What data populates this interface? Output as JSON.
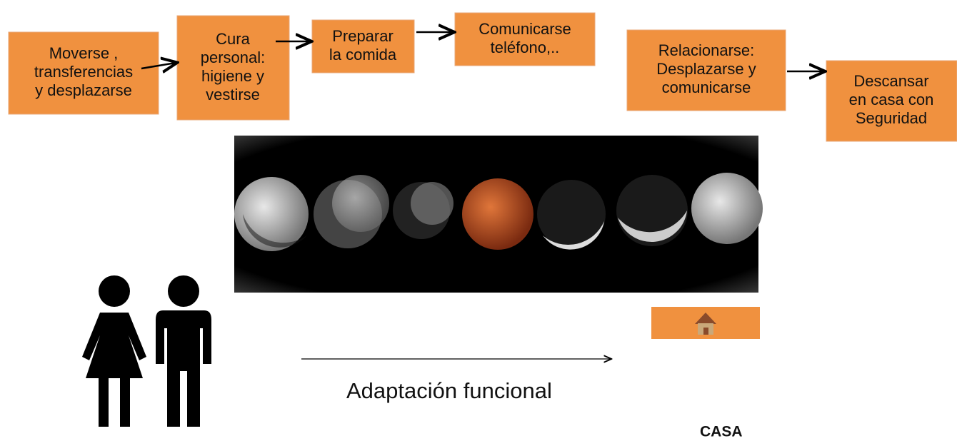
{
  "nodes": [
    {
      "lines": [
        "Moverse ,",
        "transferencias",
        "y desplazarse"
      ]
    },
    {
      "lines": [
        "Cura",
        "personal:",
        "higiene y",
        "vestirse"
      ]
    },
    {
      "lines": [
        "Preparar",
        "la comida"
      ]
    },
    {
      "lines": [
        "Comunicarse",
        "teléfono,.."
      ]
    },
    {
      "lines": [
        "Relacionarse:",
        "Desplazarse y",
        "comunicarse"
      ]
    },
    {
      "lines": [
        "Descansar",
        "en casa con",
        "Seguridad"
      ]
    }
  ],
  "caption": "Adaptación funcional",
  "place": "CASA"
}
